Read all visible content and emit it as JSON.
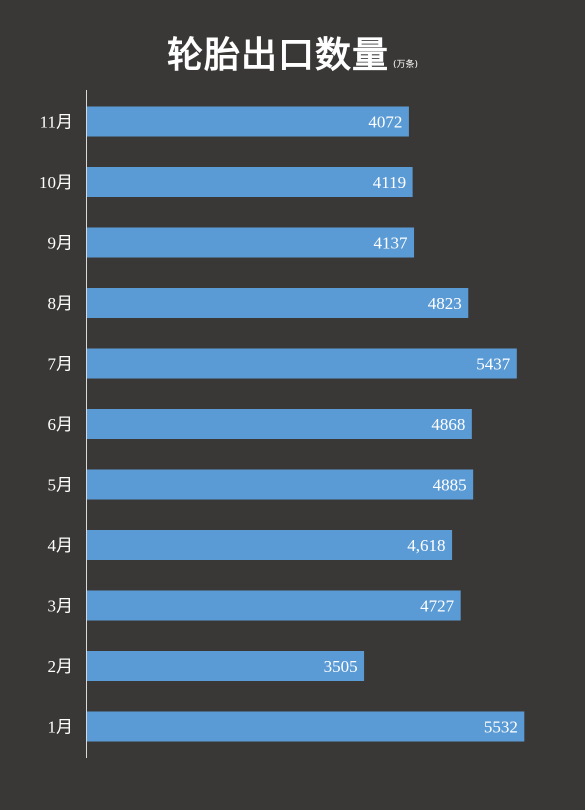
{
  "chart_data": {
    "type": "bar",
    "orientation": "horizontal",
    "title": "轮胎出口数量",
    "unit": "(万条)",
    "categories": [
      "11月",
      "10月",
      "9月",
      "8月",
      "7月",
      "6月",
      "5月",
      "4月",
      "3月",
      "2月",
      "1月"
    ],
    "values": [
      4072,
      4119,
      4137,
      4823,
      5437,
      4868,
      4885,
      4618,
      4727,
      3505,
      5532
    ],
    "value_labels": [
      "4072",
      "4119",
      "4137",
      "4823",
      "5437",
      "4868",
      "4885",
      "4,618",
      "4727",
      "3505",
      "5532"
    ],
    "xlim": [
      0,
      5800
    ],
    "grid": false,
    "legend": "none",
    "colors": {
      "background": "#3a3837",
      "bar": "#5b9bd5",
      "text": "#ffffff",
      "axis": "#d9d9d9"
    }
  }
}
